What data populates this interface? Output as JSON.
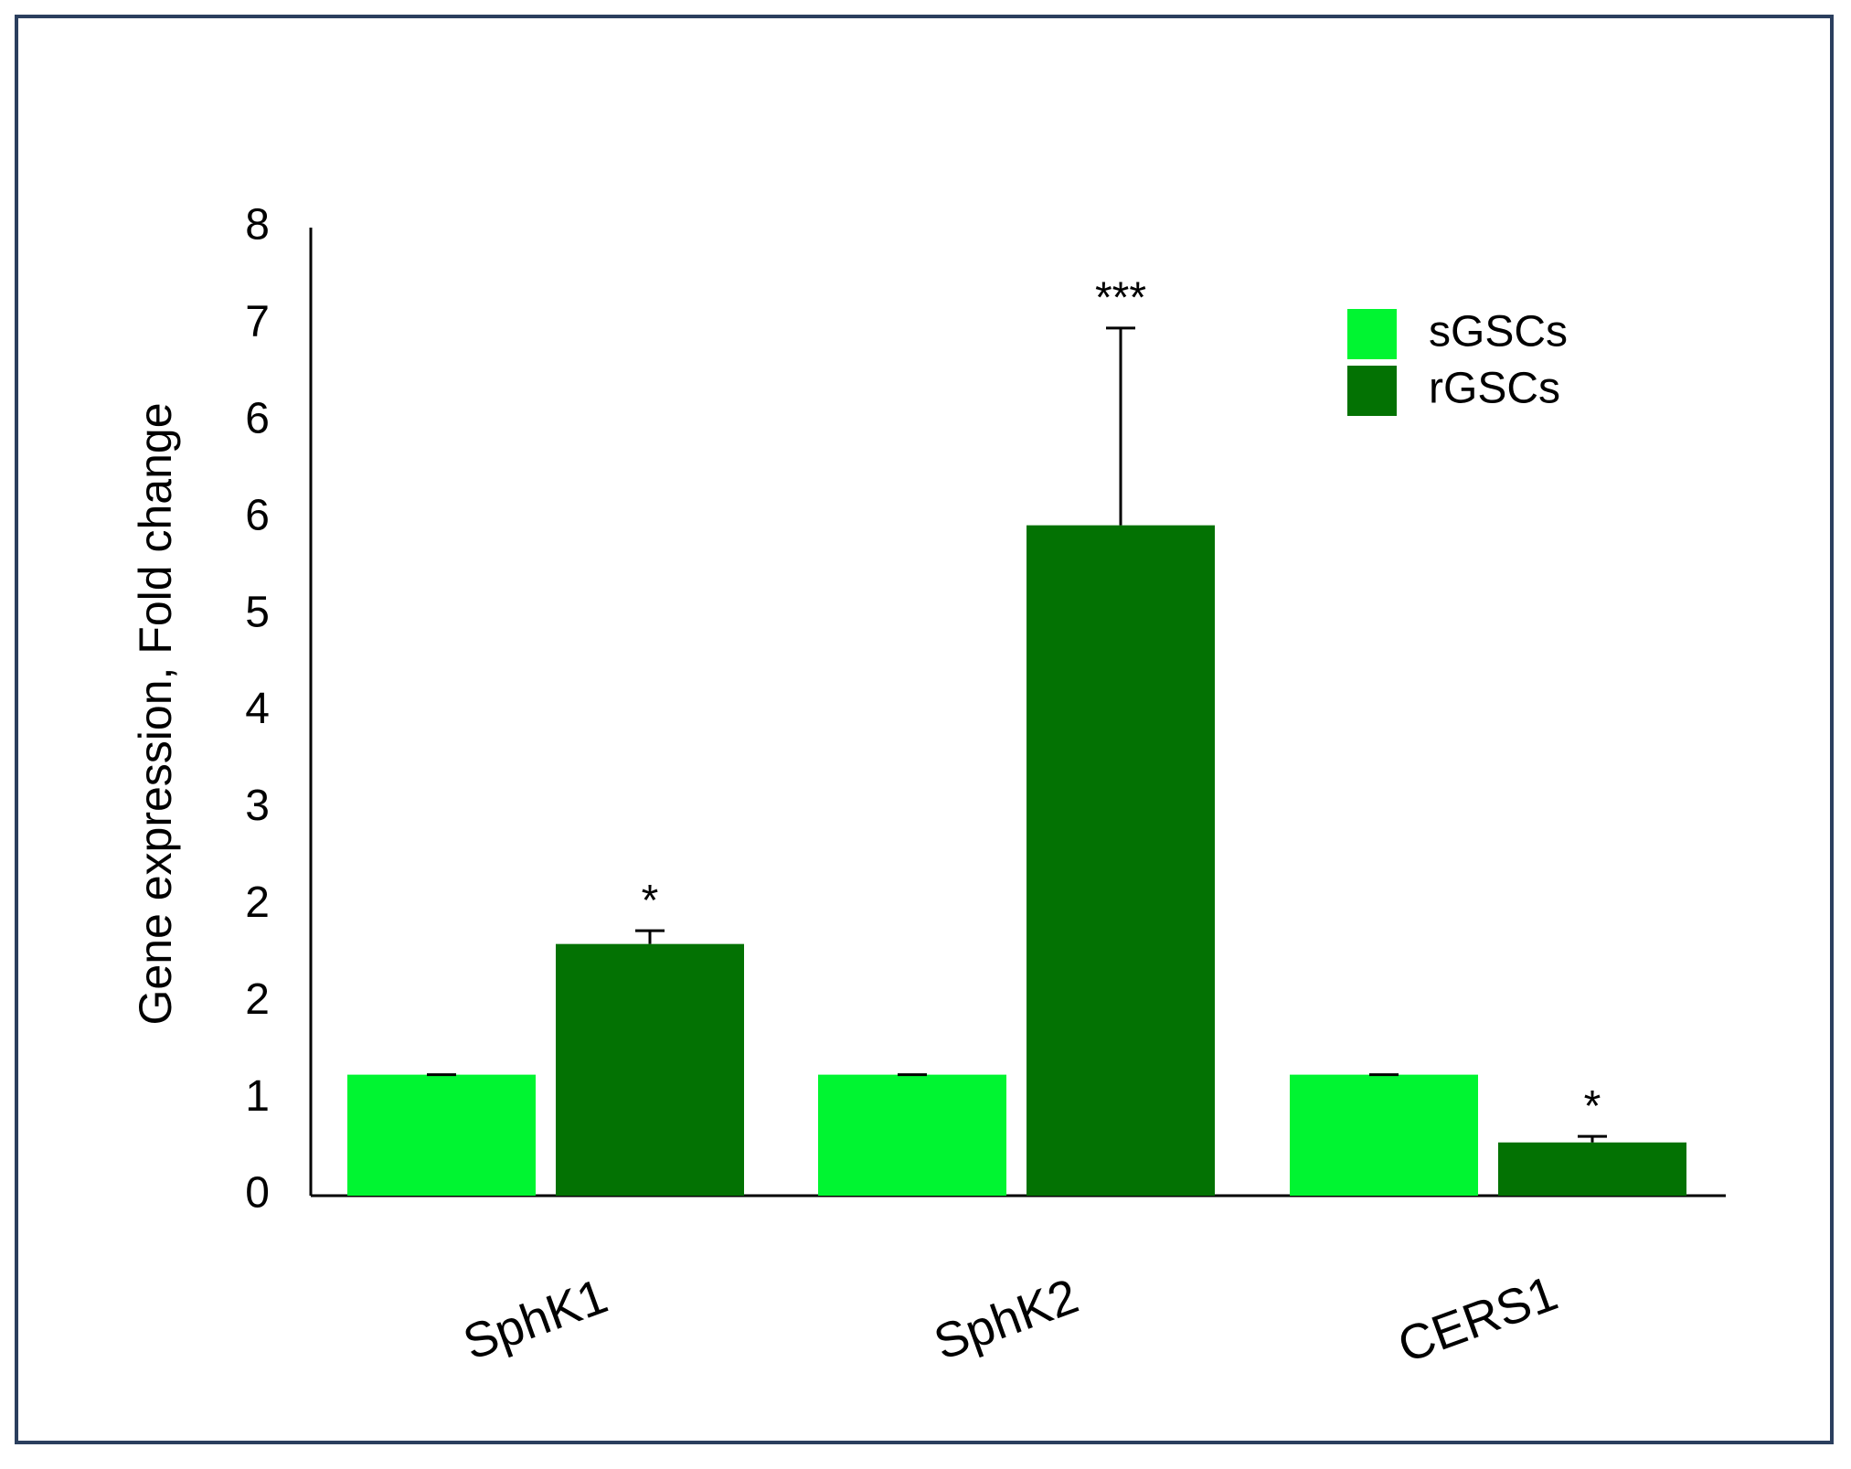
{
  "chart_data": {
    "type": "bar",
    "ylabel": "Gene expression, Fold change",
    "categories": [
      "SphK1",
      "SphK2",
      "CERS1"
    ],
    "series": [
      {
        "name": "sGSCs",
        "color": "#00f531",
        "values": [
          1.0,
          1.0,
          1.0
        ],
        "errors": [
          0,
          0,
          0
        ]
      },
      {
        "name": "rGSCs",
        "color": "#037203",
        "values": [
          2.08,
          5.54,
          0.44
        ],
        "errors": [
          0.11,
          1.63,
          0.05
        ],
        "annotations": [
          "*",
          "***",
          "*"
        ]
      }
    ],
    "ylim": [
      0,
      8
    ],
    "yticks": [
      0,
      {
        "value": 0.8,
        "label": "1"
      },
      {
        "value": 1.6,
        "label": "2"
      },
      {
        "value": 2.4,
        "label": "2"
      },
      {
        "value": 3.2,
        "label": "3"
      },
      4,
      {
        "value": 4.8,
        "label": "5"
      },
      {
        "value": 5.6,
        "label": "6"
      },
      {
        "value": 6.4,
        "label": "6"
      },
      {
        "value": 7.2,
        "label": "7"
      },
      8
    ],
    "legend": "upper right"
  }
}
